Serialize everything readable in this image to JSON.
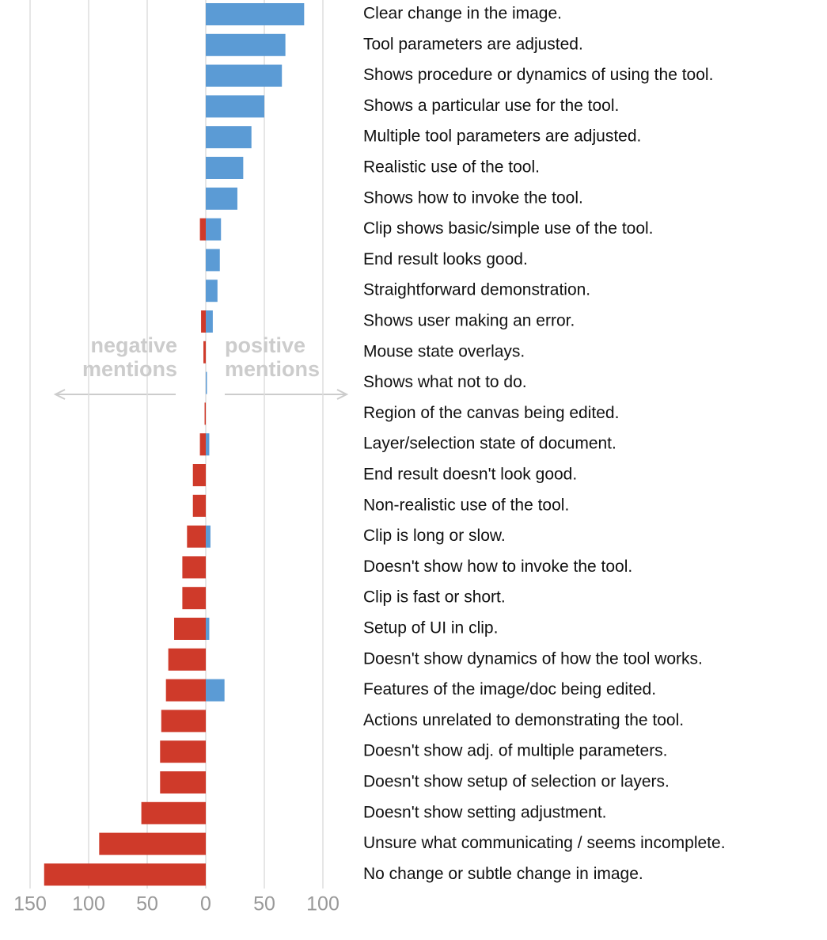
{
  "chart_data": {
    "type": "bar",
    "orientation": "horizontal",
    "categories": [
      "Clear change in the image.",
      "Tool parameters are adjusted.",
      "Shows procedure or dynamics of using the tool.",
      "Shows a particular use for the tool.",
      "Multiple tool parameters are adjusted.",
      "Realistic use of the tool.",
      "Shows how to invoke the tool.",
      "Clip shows basic/simple use of the tool.",
      "End result looks good.",
      "Straightforward demonstration.",
      "Shows user making an error.",
      "Mouse state overlays.",
      "Shows what not to do.",
      "Region of the canvas being edited.",
      "Layer/selection state of document.",
      "End result doesn't look good.",
      "Non-realistic use of the tool.",
      "Clip is long or slow.",
      "Doesn't show how to invoke the tool.",
      "Clip is fast or short.",
      "Setup of UI in clip.",
      "Doesn't show dynamics of how the tool works.",
      "Features of the image/doc being edited.",
      "Actions unrelated to demonstrating the tool.",
      "Doesn't show adj. of multiple parameters.",
      "Doesn't show setup of selection or layers.",
      "Doesn't show setting adjustment.",
      "Unsure what communicating / seems incomplete.",
      "No change or subtle change in image."
    ],
    "series": [
      {
        "color": "#cf3a2a",
        "values": [
          0,
          0,
          0,
          0,
          0,
          0,
          0,
          -5,
          0,
          0,
          -4,
          -2,
          0,
          -1,
          -5,
          -11,
          -11,
          -16,
          -20,
          -20,
          -27,
          -32,
          -34,
          -38,
          -39,
          -39,
          -55,
          -91,
          -138
        ]
      },
      {
        "color": "#5b9bd5",
        "values": [
          84,
          68,
          65,
          50,
          39,
          32,
          27,
          13,
          12,
          10,
          6,
          0,
          1,
          0,
          3,
          0,
          0,
          4,
          0,
          0,
          3,
          0,
          16,
          0,
          0,
          0,
          0,
          0,
          0
        ]
      }
    ],
    "xlim": [
      -150,
      100
    ],
    "xticks": [
      {
        "value": -150,
        "label": "150"
      },
      {
        "value": -100,
        "label": "100"
      },
      {
        "value": -50,
        "label": "50"
      },
      0,
      50,
      100
    ],
    "grid": true,
    "annotations": [
      {
        "lines": [
          "negative",
          "mentions"
        ]
      },
      {
        "lines": [
          "positive",
          "mentions"
        ]
      }
    ]
  }
}
